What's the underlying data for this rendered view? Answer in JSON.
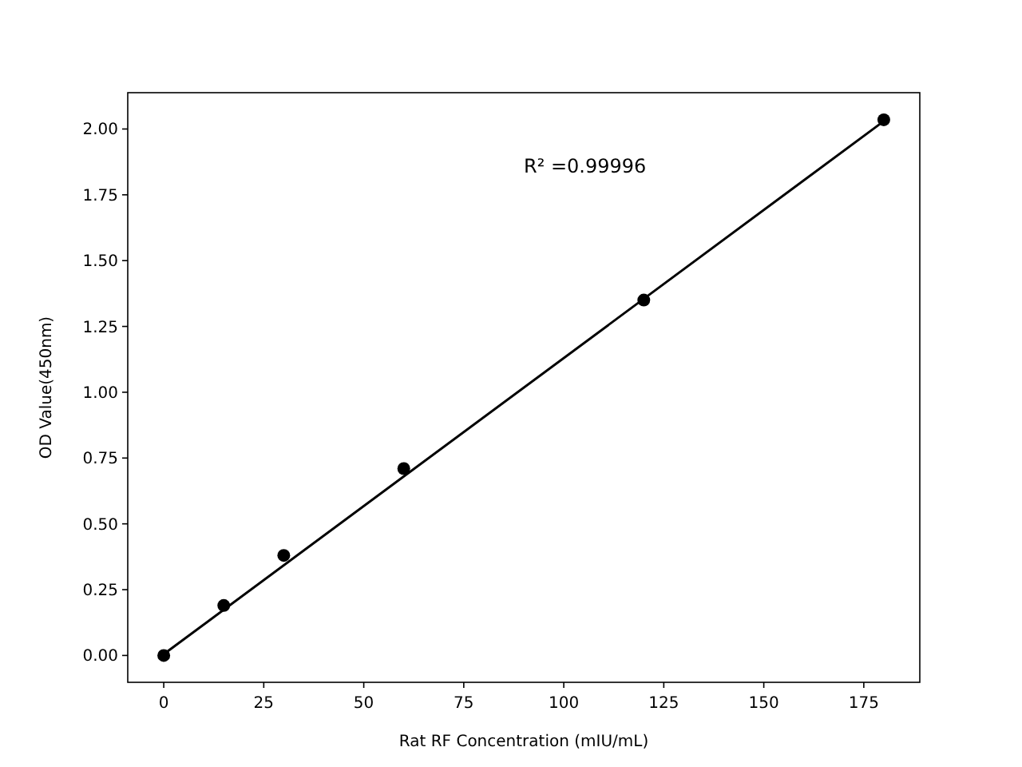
{
  "chart_data": {
    "type": "scatter",
    "xlabel": "Rat RF Concentration (mIU/mL)",
    "ylabel": "OD Value(450nm)",
    "xlim": [
      -9,
      189
    ],
    "xticks": [
      0,
      25,
      50,
      75,
      100,
      125,
      150,
      175
    ],
    "ylim": [
      -0.102,
      2.138
    ],
    "yticks": [
      {
        "value": 0,
        "label": "0.00"
      },
      {
        "value": 0.25,
        "label": "0.25"
      },
      {
        "value": 0.5,
        "label": "0.50"
      },
      {
        "value": 0.75,
        "label": "0.75"
      },
      {
        "value": 1,
        "label": "1.00"
      },
      {
        "value": 1.25,
        "label": "1.25"
      },
      {
        "value": 1.5,
        "label": "1.50"
      },
      {
        "value": 1.75,
        "label": "1.75"
      },
      {
        "value": 2,
        "label": "2.00"
      }
    ],
    "grid": false,
    "annotations": [
      "R² =0.99996"
    ],
    "series": [
      {
        "color": "#000000",
        "marker": "circle",
        "x": [
          0,
          15,
          30,
          60,
          120,
          180
        ],
        "values": [
          0.0,
          0.19,
          0.38,
          0.71,
          1.35,
          2.035
        ]
      },
      {
        "type": "line",
        "color": "#000000",
        "marker": "none",
        "line_style": "solid",
        "x": [
          0,
          180
        ],
        "values": [
          0.005,
          2.03
        ]
      }
    ]
  }
}
